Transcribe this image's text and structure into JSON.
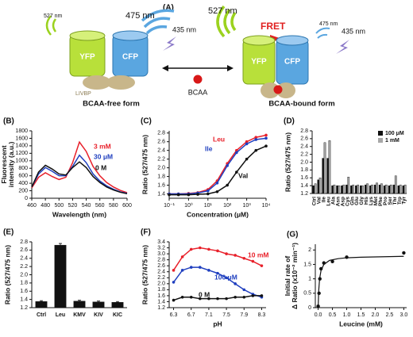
{
  "diagram": {
    "label": "(A)",
    "left": {
      "emission_yfp": "527 nm",
      "emission_cfp": "475 nm",
      "excitation": "435 nm",
      "yfp": "YFP",
      "cfp": "CFP",
      "binding_protein": "LIVBP",
      "caption": "BCAA-free form"
    },
    "ligand": "BCAA",
    "right": {
      "emission_yfp": "527 nm",
      "fret": "FRET",
      "emission_cfp": "475 nm",
      "excitation": "435 nm",
      "yfp": "YFP",
      "cfp": "CFP",
      "caption": "BCAA-bound form"
    }
  },
  "chart_data": [
    {
      "type": "line",
      "title": "(B)",
      "xlabel": "Wavelength (nm)",
      "ylabel": [
        "Fluorescent",
        "intensity (a.u.)"
      ],
      "x": [
        460,
        470,
        480,
        490,
        500,
        510,
        520,
        530,
        540,
        550,
        560,
        570,
        580,
        590,
        600
      ],
      "series": [
        {
          "name": "3 mM",
          "color": "#e8202a",
          "values": [
            280,
            560,
            680,
            580,
            500,
            560,
            950,
            1500,
            1250,
            850,
            600,
            420,
            300,
            210,
            150
          ]
        },
        {
          "name": "30 μM",
          "color": "#1f3fbf",
          "values": [
            300,
            650,
            820,
            720,
            600,
            600,
            850,
            1150,
            950,
            650,
            460,
            330,
            240,
            170,
            130
          ]
        },
        {
          "name": "0 M",
          "color": "#111111",
          "values": [
            300,
            700,
            880,
            780,
            650,
            620,
            820,
            970,
            820,
            580,
            420,
            300,
            220,
            160,
            120
          ]
        }
      ],
      "xlim": [
        460,
        600
      ],
      "xticks": [
        460,
        480,
        500,
        520,
        540,
        560,
        580,
        600
      ],
      "ylim": [
        0,
        1800
      ],
      "yticks": [
        0,
        200,
        400,
        600,
        800,
        1000,
        1200,
        1400,
        1600,
        1800
      ],
      "markers": false
    },
    {
      "type": "line",
      "title": "(C)",
      "xlabel": "Concentration (μM)",
      "ylabel": [
        "Ratio (527/475 nm)"
      ],
      "x": [
        0.1,
        0.3,
        1,
        3,
        10,
        30,
        100,
        300,
        1000,
        3000,
        10000
      ],
      "series": [
        {
          "name": "Leu",
          "color": "#e8202a",
          "values": [
            1.4,
            1.4,
            1.41,
            1.43,
            1.5,
            1.7,
            2.1,
            2.4,
            2.6,
            2.7,
            2.75
          ]
        },
        {
          "name": "Ile",
          "color": "#1f3fbf",
          "values": [
            1.4,
            1.4,
            1.4,
            1.42,
            1.47,
            1.65,
            2.05,
            2.35,
            2.55,
            2.65,
            2.68
          ]
        },
        {
          "name": "Val",
          "color": "#111111",
          "values": [
            1.38,
            1.38,
            1.38,
            1.39,
            1.4,
            1.45,
            1.6,
            1.9,
            2.2,
            2.4,
            2.5
          ]
        }
      ],
      "xlim": [
        0.1,
        10000
      ],
      "xlog": true,
      "xticks": [
        {
          "value": 0.1,
          "label": "10⁻¹"
        },
        {
          "value": 1,
          "label": "10⁰"
        },
        {
          "value": 10,
          "label": "10¹"
        },
        {
          "value": 100,
          "label": "10²"
        },
        {
          "value": 1000,
          "label": "10³"
        },
        {
          "value": 10000,
          "label": "10⁴"
        }
      ],
      "ylim": [
        1.3,
        2.85
      ],
      "yticks": [
        1.4,
        1.6,
        1.8,
        {
          "value": 2,
          "label": "2.0"
        },
        2.2,
        2.4,
        2.6,
        2.8
      ],
      "markers": true
    },
    {
      "type": "bar",
      "title": "(D)",
      "ylabel": [
        "Ratio (527/475 nm)"
      ],
      "categories": [
        "Ctrl",
        "Val",
        "Ile",
        "Leu",
        "Ala",
        "Asn",
        "Asp",
        "Cys",
        "Gln",
        "Glu",
        "Gly",
        "His",
        "Lys",
        "Met",
        "Phe",
        "Pro",
        "Ser",
        "Thr",
        "Trp",
        "Tyr"
      ],
      "series": [
        {
          "name": "100 μM",
          "color": "#111111",
          "values": [
            1.4,
            1.55,
            2.1,
            2.1,
            1.4,
            1.4,
            1.4,
            1.42,
            1.4,
            1.4,
            1.4,
            1.42,
            1.4,
            1.42,
            1.42,
            1.4,
            1.4,
            1.42,
            1.4,
            1.4
          ]
        },
        {
          "name": "1 mM",
          "color": "#a8a8a8",
          "values": [
            1.45,
            1.6,
            2.5,
            2.55,
            1.42,
            1.4,
            1.42,
            1.62,
            1.42,
            1.42,
            1.4,
            1.45,
            1.42,
            1.47,
            1.45,
            1.42,
            1.42,
            1.65,
            1.42,
            1.42
          ]
        }
      ],
      "ylim": [
        1.2,
        2.8
      ],
      "yticks": [
        1.2,
        1.4,
        1.6,
        1.8,
        {
          "value": 2,
          "label": "2.0"
        },
        2.2,
        2.4,
        2.6,
        2.8
      ],
      "legend": "upper right"
    },
    {
      "type": "bar",
      "title": "(E)",
      "ylabel": [
        "Ratio (527/475 nm)"
      ],
      "categories": [
        "Ctrl",
        "Leu",
        "KMV",
        "KIV",
        "KIC"
      ],
      "series": [
        {
          "color": "#111111",
          "values": [
            1.35,
            2.72,
            1.36,
            1.34,
            1.33
          ],
          "errors": [
            0.02,
            0.04,
            0.02,
            0.02,
            0.02
          ]
        }
      ],
      "ylim": [
        1.2,
        2.8
      ],
      "yticks": [
        1.2,
        1.4,
        1.6,
        1.8,
        {
          "value": 2,
          "label": "2.0"
        },
        2.2,
        2.4,
        2.6,
        2.8
      ]
    },
    {
      "type": "line",
      "title": "(F)",
      "xlabel": "pH",
      "ylabel": [
        "Ratio (527/475 nm)"
      ],
      "x": [
        6.3,
        6.5,
        6.7,
        6.9,
        7.1,
        7.3,
        7.5,
        7.7,
        7.9,
        8.1,
        8.3
      ],
      "series": [
        {
          "name": "10 mM",
          "color": "#e8202a",
          "values": [
            2.45,
            2.9,
            3.15,
            3.2,
            3.15,
            3.1,
            3.0,
            2.95,
            2.85,
            2.75,
            2.6
          ]
        },
        {
          "name": "100 μM",
          "color": "#1f3fbf",
          "values": [
            2.05,
            2.45,
            2.55,
            2.55,
            2.45,
            2.35,
            2.2,
            2.0,
            1.8,
            1.65,
            1.55
          ]
        },
        {
          "name": "0 M",
          "color": "#111111",
          "values": [
            1.45,
            1.55,
            1.55,
            1.5,
            1.5,
            1.5,
            1.5,
            1.55,
            1.55,
            1.6,
            1.6
          ]
        }
      ],
      "xlim": [
        6.2,
        8.4
      ],
      "xticks": [
        6.3,
        6.7,
        7.1,
        7.5,
        7.9,
        8.3
      ],
      "ylim": [
        1.2,
        3.4
      ],
      "yticks": [
        1.2,
        1.4,
        1.6,
        1.8,
        {
          "value": 2,
          "label": "2.0"
        },
        2.2,
        2.4,
        2.6,
        2.8,
        {
          "value": 3,
          "label": "3.0"
        },
        3.2,
        3.4
      ],
      "markers": true
    },
    {
      "type": "scatter",
      "title": "(G)",
      "xlabel": "Leucine (mM)",
      "ylabel": [
        "Initial rate of",
        "Δ Ratio (x10⁻² min⁻¹)"
      ],
      "x": [
        0,
        0.03,
        0.06,
        0.1,
        0.2,
        0.5,
        1.0,
        3.0
      ],
      "values": [
        0.05,
        0.5,
        1.0,
        1.35,
        1.55,
        1.6,
        1.75,
        1.9
      ],
      "color": "#111111",
      "fit": {
        "x": [
          0,
          0.02,
          0.05,
          0.1,
          0.2,
          0.4,
          0.7,
          1,
          1.5,
          2,
          2.5,
          3
        ],
        "values": [
          0,
          0.6,
          1.0,
          1.29,
          1.5,
          1.64,
          1.7,
          1.73,
          1.75,
          1.76,
          1.77,
          1.78
        ]
      },
      "xlim": [
        -0.1,
        3.1
      ],
      "xticks": [
        {
          "value": 0,
          "label": "0.0"
        },
        0.5,
        {
          "value": 1,
          "label": "1.0"
        },
        1.5,
        {
          "value": 2,
          "label": "2.0"
        },
        2.5,
        {
          "value": 3,
          "label": "3.0"
        }
      ],
      "ylim": [
        0,
        2.2
      ],
      "yticks": [
        0,
        0.5,
        1,
        1.5,
        2
      ]
    }
  ]
}
